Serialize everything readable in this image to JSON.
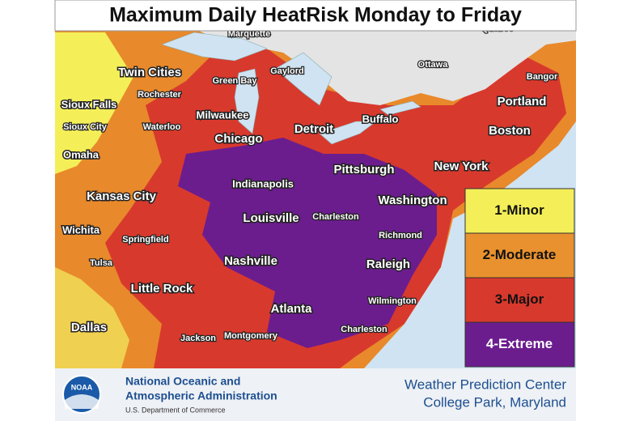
{
  "title": "Maximum Daily HeatRisk Monday to Friday",
  "cities": [
    {
      "name": "Marquette"
    },
    {
      "name": "Quebec"
    },
    {
      "name": "Ottawa"
    },
    {
      "name": "Bangor"
    },
    {
      "name": "Twin Cities"
    },
    {
      "name": "Gaylord"
    },
    {
      "name": "Green Bay"
    },
    {
      "name": "Portland"
    },
    {
      "name": "Rochester"
    },
    {
      "name": "Sioux Falls"
    },
    {
      "name": "Milwaukee"
    },
    {
      "name": "Buffalo"
    },
    {
      "name": "Detroit"
    },
    {
      "name": "Boston"
    },
    {
      "name": "Sioux City"
    },
    {
      "name": "Waterloo"
    },
    {
      "name": "Chicago"
    },
    {
      "name": "Omaha"
    },
    {
      "name": "Pittsburgh"
    },
    {
      "name": "New York"
    },
    {
      "name": "Indianapolis"
    },
    {
      "name": "Washington"
    },
    {
      "name": "Kansas City"
    },
    {
      "name": "Louisville"
    },
    {
      "name": "Charleston"
    },
    {
      "name": "Wichita"
    },
    {
      "name": "Springfield"
    },
    {
      "name": "Richmond"
    },
    {
      "name": "Tulsa"
    },
    {
      "name": "Nashville"
    },
    {
      "name": "Raleigh"
    },
    {
      "name": "Little Rock"
    },
    {
      "name": "Wilmington"
    },
    {
      "name": "Atlanta"
    },
    {
      "name": "Charleston"
    },
    {
      "name": "Dallas"
    },
    {
      "name": "Jackson"
    },
    {
      "name": "Montgomery"
    }
  ],
  "legend": [
    {
      "label": "1-Minor",
      "color": "#f4ef58"
    },
    {
      "label": "2-Moderate",
      "color": "#e8912e"
    },
    {
      "label": "3-Major",
      "color": "#d8392d"
    },
    {
      "label": "4-Extreme",
      "color": "#6b1d8e"
    }
  ],
  "footer": {
    "logo": "NOAA",
    "agency": [
      "National Oceanic and",
      "Atmospheric Administration"
    ],
    "department": "U.S. Department of Commerce",
    "center": "Weather Prediction Center",
    "location": "College Park, Maryland"
  }
}
